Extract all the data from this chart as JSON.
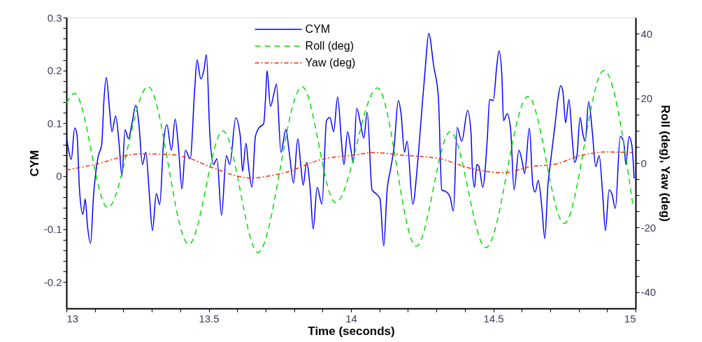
{
  "chart_data": {
    "type": "line",
    "xlabel": "Time (seconds)",
    "ylabel": "CYM",
    "y2label": "Roll (deg), Yaw (deg)",
    "xlim": [
      13,
      15
    ],
    "ylim": [
      -0.25,
      0.3
    ],
    "y2lim": [
      -45,
      45
    ],
    "xticks": [
      13,
      {
        "value": 13.1,
        "label": null
      },
      {
        "value": 13.2,
        "label": null
      },
      {
        "value": 13.3,
        "label": null
      },
      {
        "value": 13.4,
        "label": null
      },
      13.5,
      {
        "value": 13.6,
        "label": null
      },
      {
        "value": 13.7,
        "label": null
      },
      {
        "value": 13.8,
        "label": null
      },
      {
        "value": 13.9,
        "label": null
      },
      14,
      {
        "value": 14.1,
        "label": null
      },
      {
        "value": 14.2,
        "label": null
      },
      {
        "value": 14.3,
        "label": null
      },
      {
        "value": 14.4,
        "label": null
      },
      14.5,
      {
        "value": 14.6,
        "label": null
      },
      {
        "value": 14.7,
        "label": null
      },
      {
        "value": 14.8,
        "label": null
      },
      {
        "value": 14.9,
        "label": null
      },
      15
    ],
    "yticks": [
      -0.2,
      {
        "value": -0.18,
        "label": null
      },
      {
        "value": -0.16,
        "label": null
      },
      {
        "value": -0.14,
        "label": null
      },
      {
        "value": -0.12,
        "label": null
      },
      -0.1,
      {
        "value": -0.08,
        "label": null
      },
      {
        "value": -0.06,
        "label": null
      },
      {
        "value": -0.04,
        "label": null
      },
      {
        "value": -0.02,
        "label": null
      },
      0,
      {
        "value": 0.02,
        "label": null
      },
      {
        "value": 0.04,
        "label": null
      },
      {
        "value": 0.06,
        "label": null
      },
      {
        "value": 0.08,
        "label": null
      },
      0.1,
      {
        "value": 0.12,
        "label": null
      },
      {
        "value": 0.14,
        "label": null
      },
      {
        "value": 0.16,
        "label": null
      },
      {
        "value": 0.18,
        "label": null
      },
      0.2,
      {
        "value": 0.22,
        "label": null
      },
      {
        "value": 0.24,
        "label": null
      },
      {
        "value": 0.26,
        "label": null
      },
      {
        "value": 0.28,
        "label": null
      },
      0.3
    ],
    "y2ticks": [
      -40,
      {
        "value": -35,
        "label": null
      },
      {
        "value": -30,
        "label": null
      },
      {
        "value": -25,
        "label": null
      },
      -20,
      {
        "value": -15,
        "label": null
      },
      {
        "value": -10,
        "label": null
      },
      {
        "value": -5,
        "label": null
      },
      0,
      {
        "value": 5,
        "label": null
      },
      {
        "value": 10,
        "label": null
      },
      {
        "value": 15,
        "label": null
      },
      20,
      {
        "value": 25,
        "label": null
      },
      {
        "value": 30,
        "label": null
      },
      {
        "value": 35,
        "label": null
      },
      40
    ],
    "grid": false,
    "legend": "top",
    "marker": "none",
    "series": [
      {
        "name": "CYM",
        "color": "#0000ff",
        "line_style": "solid",
        "x": [
          13.001,
          13.009,
          13.017,
          13.029,
          13.037,
          13.046,
          13.058,
          13.066,
          13.074,
          13.085,
          13.095,
          13.111,
          13.124,
          13.132,
          13.14,
          13.152,
          13.16,
          13.173,
          13.185,
          13.195,
          13.206,
          13.218,
          13.23,
          13.244,
          13.255,
          13.267,
          13.279,
          13.292,
          13.302,
          13.316,
          13.328,
          13.341,
          13.353,
          13.369,
          13.382,
          13.394,
          13.406,
          13.418,
          13.435,
          13.451,
          13.459,
          13.472,
          13.484,
          13.492,
          13.504,
          13.517,
          13.529,
          13.545,
          13.562,
          13.574,
          13.595,
          13.611,
          13.619,
          13.631,
          13.64,
          13.652,
          13.664,
          13.676,
          13.693,
          13.7,
          13.705,
          13.717,
          13.73,
          13.738,
          13.754,
          13.771,
          13.783,
          13.798,
          13.813,
          13.824,
          13.832,
          13.844,
          13.857,
          13.867,
          13.881,
          13.898,
          13.914,
          13.926,
          13.939,
          13.953,
          13.967,
          13.975,
          13.988,
          14.0,
          14.008,
          14.02,
          14.033,
          14.045,
          14.057,
          14.074,
          14.09,
          14.102,
          14.115,
          14.127,
          14.139,
          14.152,
          14.166,
          14.176,
          14.188,
          14.197,
          14.217,
          14.233,
          14.246,
          14.262,
          14.273,
          14.291,
          14.307,
          14.319,
          14.336,
          14.348,
          14.36,
          14.373,
          14.389,
          14.41,
          14.422,
          14.426,
          14.434,
          14.442,
          14.45,
          14.463,
          14.479,
          14.487,
          14.5,
          14.512,
          14.52,
          14.53,
          14.536,
          14.549,
          14.561,
          14.573,
          14.59,
          14.602,
          14.61,
          14.627,
          14.639,
          14.647,
          14.658,
          14.671,
          14.681,
          14.692,
          14.7,
          14.717,
          14.727,
          14.737,
          14.745,
          14.754,
          14.766,
          14.778,
          14.786,
          14.794,
          14.805,
          14.815,
          14.823,
          14.835,
          14.848,
          14.86,
          14.872,
          14.885,
          14.894,
          14.907,
          14.917,
          14.929,
          14.946,
          14.958,
          14.966,
          14.977,
          14.987,
          14.995
        ],
        "values": [
          0.071,
          0.045,
          0.032,
          0.091,
          0.079,
          -0.026,
          -0.072,
          -0.043,
          -0.094,
          -0.127,
          -0.039,
          0.036,
          0.06,
          0.145,
          0.187,
          0.123,
          0.084,
          0.114,
          0.062,
          0.0,
          0.088,
          0.071,
          0.099,
          0.134,
          0.097,
          0.022,
          0.045,
          -0.039,
          -0.103,
          -0.033,
          -0.054,
          0.062,
          0.097,
          0.049,
          0.108,
          0.053,
          -0.024,
          0.049,
          0.033,
          0.167,
          0.22,
          0.184,
          0.203,
          0.23,
          0.079,
          0.022,
          0.033,
          -0.074,
          0.039,
          0.022,
          0.11,
          0.075,
          0.009,
          0.062,
          0.018,
          -0.021,
          0.075,
          0.091,
          0.099,
          0.15,
          0.2,
          0.132,
          0.158,
          0.174,
          0.045,
          0.088,
          0.045,
          -0.013,
          0.071,
          0.018,
          -0.017,
          0.026,
          -0.026,
          -0.1,
          -0.021,
          -0.053,
          0.105,
          0.111,
          0.084,
          0.15,
          0.062,
          0.022,
          0.084,
          0.049,
          0.026,
          0.128,
          0.101,
          0.072,
          0.121,
          -0.026,
          -0.034,
          -0.043,
          -0.132,
          -0.026,
          0.013,
          0.058,
          0.143,
          0.118,
          0.045,
          0.066,
          -0.053,
          0.018,
          0.105,
          0.211,
          0.27,
          0.207,
          0.15,
          -0.026,
          -0.03,
          -0.039,
          -0.066,
          0.092,
          0.066,
          0.124,
          0.079,
          0.018,
          -0.021,
          0.022,
          0.018,
          -0.021,
          0.071,
          0.145,
          0.143,
          0.207,
          0.237,
          0.193,
          0.105,
          0.118,
          0.088,
          -0.026,
          0.049,
          0.026,
          0.005,
          0.091,
          -0.017,
          -0.03,
          -0.008,
          -0.061,
          -0.118,
          -0.017,
          0.022,
          0.097,
          0.145,
          0.171,
          0.158,
          0.101,
          0.145,
          0.066,
          0.026,
          0.039,
          0.111,
          0.079,
          0.066,
          0.141,
          0.084,
          0.018,
          0.039,
          -0.039,
          -0.103,
          -0.026,
          -0.034,
          -0.061,
          0.075,
          0.066,
          0.022,
          0.075,
          0.058,
          -0.004
        ]
      },
      {
        "name": "Roll (deg)",
        "color": "#00dd00",
        "line_style": "dashed",
        "axis": "y2",
        "x": [
          13.0,
          13.029,
          13.145,
          13.287,
          13.43,
          13.55,
          13.673,
          13.828,
          13.946,
          14.093,
          14.229,
          14.349,
          14.474,
          14.622,
          14.749,
          14.889,
          14.99
        ],
        "values": [
          18.5,
          21.5,
          -13.8,
          23.6,
          -25.2,
          9.9,
          -27.7,
          23.6,
          -12.3,
          23.2,
          -25.8,
          9.7,
          -26.2,
          20.6,
          -18.7,
          28.6,
          -12.7
        ]
      },
      {
        "name": "Yaw (deg)",
        "color": "#ff2a00",
        "line_style": "dashdot",
        "axis": "y2",
        "x": [
          13.0,
          13.103,
          13.258,
          13.366,
          13.423,
          13.514,
          13.651,
          13.693,
          13.767,
          13.897,
          14.02,
          14.079,
          14.184,
          14.314,
          14.413,
          14.536,
          14.634,
          14.717,
          14.799,
          14.897,
          14.988
        ],
        "values": [
          -2.2,
          -0.4,
          2.8,
          2.6,
          1.7,
          -1.5,
          -4.7,
          -4.3,
          -3.0,
          1.1,
          2.6,
          3.2,
          2.4,
          1.3,
          -1.5,
          -3.0,
          -1.1,
          -0.4,
          2.1,
          3.4,
          3.2
        ]
      }
    ]
  }
}
